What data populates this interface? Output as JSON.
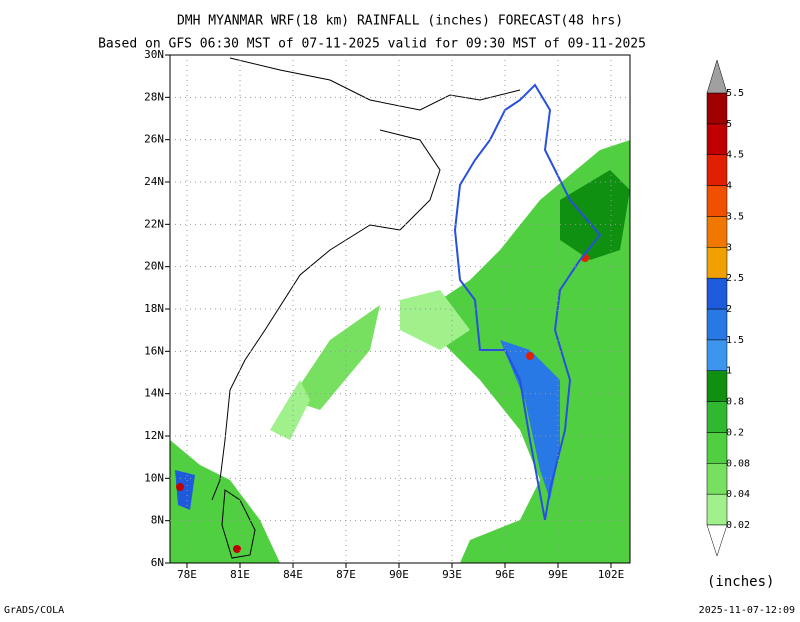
{
  "header": {
    "title": "DMH MYANMAR WRF(18 km) RAINFALL (inches) FORECAST(48 hrs)",
    "subtitle": "Based on GFS 06:30 MST of 07-11-2025 valid for 09:30 MST of 09-11-2025"
  },
  "map": {
    "lon_labels": [
      "78E",
      "81E",
      "84E",
      "87E",
      "90E",
      "93E",
      "96E",
      "99E",
      "102E"
    ],
    "lat_labels": [
      "30N",
      "28N",
      "26N",
      "24N",
      "22N",
      "20N",
      "18N",
      "16N",
      "14N",
      "12N",
      "10N",
      "8N",
      "6N"
    ]
  },
  "colorbar": {
    "levels": [
      0.02,
      0.04,
      0.08,
      0.2,
      0.8,
      1,
      1.5,
      2,
      2.5,
      3,
      3.5,
      4,
      4.5,
      5,
      5.5
    ],
    "colors": [
      "#a0f08c",
      "#78e060",
      "#50d040",
      "#30b830",
      "#109010",
      "#3c96f0",
      "#2878e6",
      "#1e5adc",
      "#f0a000",
      "#f07800",
      "#f05000",
      "#e02000",
      "#c00000",
      "#a00000"
    ],
    "unit": "(inches)"
  },
  "footer": {
    "left": "GrADS/COLA",
    "right": "2025-11-07-12:09"
  }
}
